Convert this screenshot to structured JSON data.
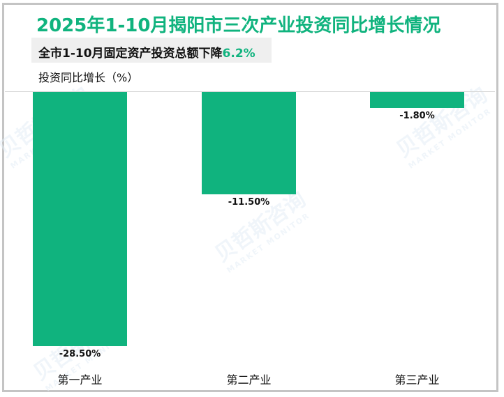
{
  "title": "2025年1-10月揭阳市三次产业投资同比增长情况",
  "subtitle": {
    "prefix": "全市1-10月固定资产投资总额下降",
    "highlight": "6.2%"
  },
  "y_axis_label": "投资同比增长（%）",
  "watermark": {
    "cn": "贝哲斯咨询",
    "en": "MARKET MONITOR"
  },
  "colors": {
    "bar": "#10b37e",
    "title": "#10b37e",
    "highlight": "#10b37e"
  },
  "bars": [
    {
      "category": "第一产业",
      "value": -28.5,
      "label": "-28.50%"
    },
    {
      "category": "第二产业",
      "value": -11.5,
      "label": "-11.50%"
    },
    {
      "category": "第三产业",
      "value": -1.8,
      "label": "-1.80%"
    }
  ],
  "chart_data": {
    "type": "bar",
    "title": "2025年1-10月揭阳市三次产业投资同比增长情况",
    "subtitle": "全市1-10月固定资产投资总额下降6.2%",
    "categories": [
      "第一产业",
      "第二产业",
      "第三产业"
    ],
    "values": [
      -28.5,
      -11.5,
      -1.8
    ],
    "data_labels": [
      "-28.50%",
      "-11.50%",
      "-1.80%"
    ],
    "xlabel": "",
    "ylabel": "投资同比增长（%）",
    "ylim": [
      -28.5,
      0
    ],
    "grid": false,
    "legend": null
  }
}
